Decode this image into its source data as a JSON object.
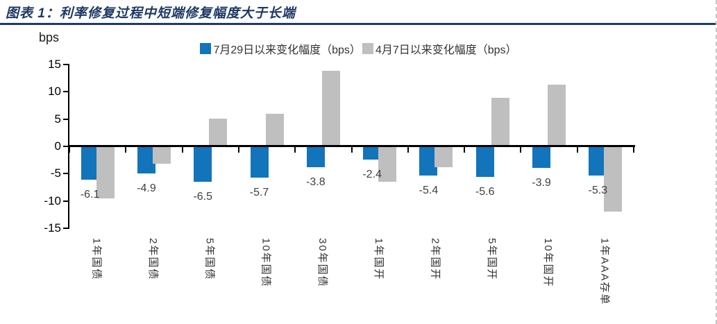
{
  "header": {
    "title": "图表 1：利率修复过程中短端修复幅度大于长端"
  },
  "chart_data": {
    "type": "bar",
    "title": "利率修复过程中短端修复幅度大于长端",
    "ylabel": "bps",
    "xlabel": "",
    "ylim": [
      -15,
      15
    ],
    "yticks": [
      15,
      10,
      5,
      0,
      -5,
      -10,
      -15
    ],
    "grid": false,
    "legend_position": "top-center",
    "categories": [
      "1年国债",
      "2年国债",
      "5年国债",
      "10年国债",
      "30年国债",
      "1年国开",
      "2年国开",
      "5年国开",
      "10年国开",
      "1年AAA存单"
    ],
    "series": [
      {
        "id": "jul29",
        "name": "7月29日以来变化幅度（bps）",
        "color": "#1274ba",
        "values": [
          -6.1,
          -4.9,
          -6.5,
          -5.7,
          -3.8,
          -2.4,
          -5.4,
          -5.6,
          -3.9,
          -5.3
        ],
        "data_labels": [
          "-6.1",
          "-4.9",
          "-6.5",
          "-5.7",
          "-3.8",
          "-2.4",
          "-5.4",
          "-5.6",
          "-3.9",
          "-5.3"
        ]
      },
      {
        "id": "apr7",
        "name": "4月7日以来变化幅度（bps）",
        "color": "#bfbfbf",
        "values": [
          -9.5,
          -3.2,
          5.1,
          6.0,
          13.8,
          -6.5,
          -3.8,
          8.9,
          11.3,
          -12.0
        ],
        "data_labels": []
      }
    ]
  }
}
